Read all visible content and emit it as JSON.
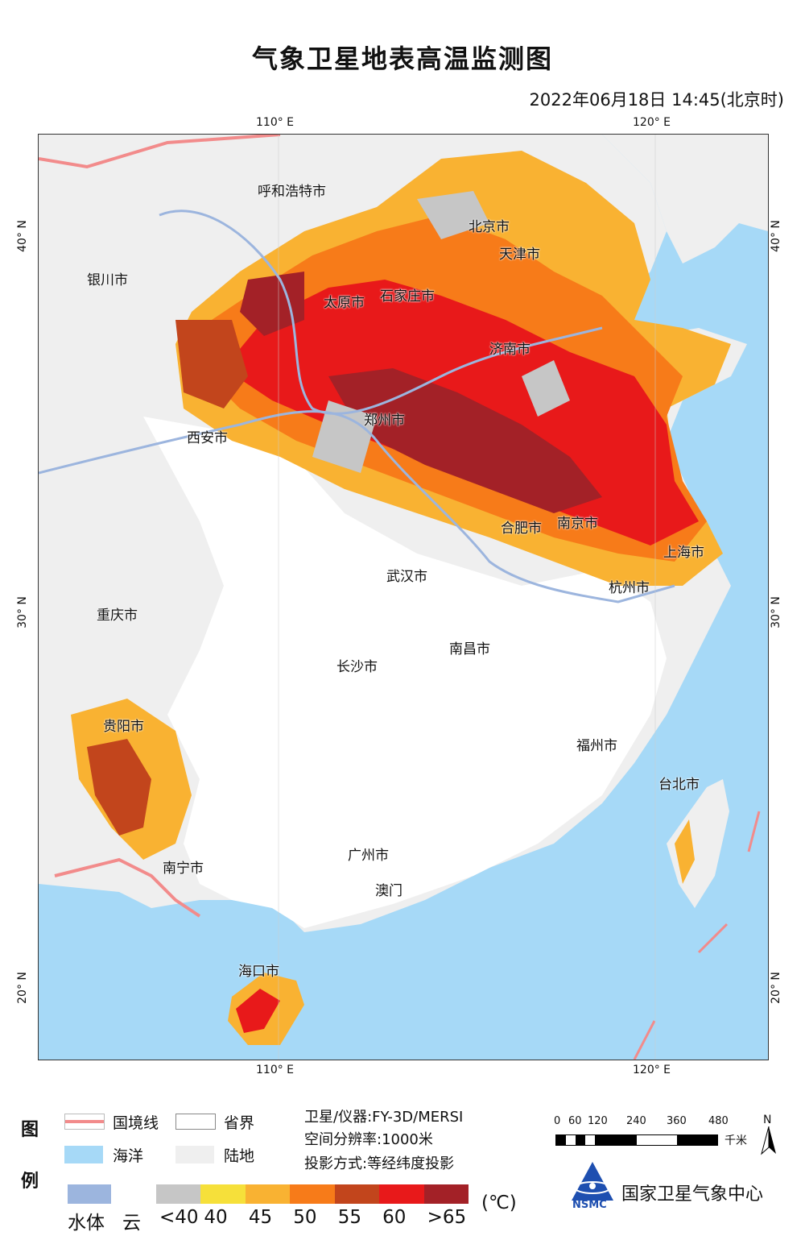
{
  "title": "气象卫星地表高温监测图",
  "datetime": "2022年06月18日  14:45(北京时)",
  "axes": {
    "lon_ticks": [
      "110° E",
      "120° E"
    ],
    "lat_ticks": [
      "40° N",
      "30° N",
      "20° N"
    ]
  },
  "cities": [
    {
      "id": "hohhot",
      "name": "呼和浩特市"
    },
    {
      "id": "beijing",
      "name": "北京市"
    },
    {
      "id": "tianjin",
      "name": "天津市"
    },
    {
      "id": "yinchuan",
      "name": "银川市"
    },
    {
      "id": "taiyuan",
      "name": "太原市"
    },
    {
      "id": "shijiazhuang",
      "name": "石家庄市"
    },
    {
      "id": "jinan",
      "name": "济南市"
    },
    {
      "id": "zhengzhou",
      "name": "郑州市"
    },
    {
      "id": "xian",
      "name": "西安市"
    },
    {
      "id": "hefei",
      "name": "合肥市"
    },
    {
      "id": "nanjing",
      "name": "南京市"
    },
    {
      "id": "shanghai",
      "name": "上海市"
    },
    {
      "id": "wuhan",
      "name": "武汉市"
    },
    {
      "id": "hangzhou",
      "name": "杭州市"
    },
    {
      "id": "chongqing",
      "name": "重庆市"
    },
    {
      "id": "nanchang",
      "name": "南昌市"
    },
    {
      "id": "changsha",
      "name": "长沙市"
    },
    {
      "id": "guiyang",
      "name": "贵阳市"
    },
    {
      "id": "fuzhou",
      "name": "福州市"
    },
    {
      "id": "taipei",
      "name": "台北市"
    },
    {
      "id": "guangzhou",
      "name": "广州市"
    },
    {
      "id": "nanning",
      "name": "南宁市"
    },
    {
      "id": "macao",
      "name": "澳门"
    },
    {
      "id": "haikou",
      "name": "海口市"
    }
  ],
  "legend": {
    "heading_1": "图",
    "heading_2": "例",
    "border_label": "国境线",
    "province_label": "省界",
    "ocean_label": "海洋",
    "land_label": "陆地",
    "water_label": "水体",
    "cloud_label": "云",
    "unit": "(℃)",
    "temp_classes": [
      {
        "label": "<40",
        "color": "#c6c6c6"
      },
      {
        "label": "40",
        "color": "#f6e03a"
      },
      {
        "label": "45",
        "color": "#f9b232"
      },
      {
        "label": "50",
        "color": "#f77b19"
      },
      {
        "label": "55",
        "color": "#c2451c"
      },
      {
        "label": "60",
        "color": "#e8191a"
      },
      {
        "label": ">65",
        "color": "#a32127"
      }
    ],
    "colors": {
      "border": "#f28b8b",
      "province": "#ffffff",
      "ocean": "#a6d9f7",
      "land": "#efefef",
      "water": "#9cb5de",
      "cloud": "#ffffff"
    }
  },
  "info": {
    "satellite": "卫星/仪器:FY-3D/MERSI",
    "resolution": "空间分辨率:1000米",
    "projection": "投影方式:等经纬度投影"
  },
  "scale": {
    "labels": [
      "0",
      "60",
      "120",
      "240",
      "360",
      "480"
    ],
    "unit": "千米",
    "north": "N"
  },
  "org": {
    "name": "国家卫星气象中心",
    "abbr": "NSMC"
  }
}
